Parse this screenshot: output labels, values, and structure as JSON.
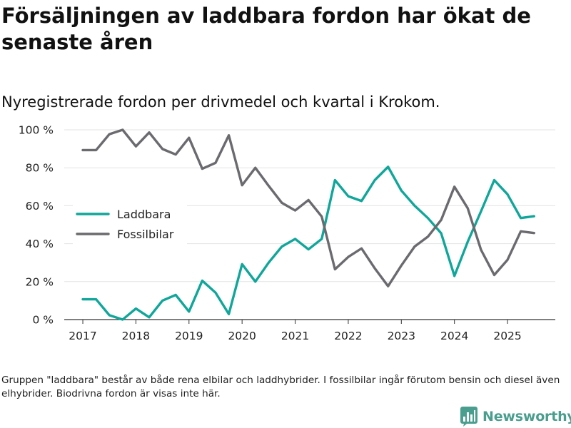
{
  "title": "Försäljningen av laddbara fordon har ökat de senaste åren",
  "subtitle": "Nyregistrerade fordon per drivmedel och kvartal i Krokom.",
  "footnote": "Gruppen \"laddbara\" består av både rena elbilar och laddhybrider. I fossilbilar ingår förutom bensin och diesel även elhybrider. Biodrivna fordon är visas inte här.",
  "brand": {
    "name": "Newsworthy",
    "color": "#4a9e8e",
    "icon": "bar-chart-logo-icon"
  },
  "colors": {
    "laddbara": "#11a69a",
    "fossilbilar": "#6b6b6f",
    "grid": "#e3e3e3",
    "axis": "#333333"
  },
  "chart_data": {
    "type": "line",
    "x_start": 2017,
    "x_step": 0.25,
    "xlim": [
      2016.65,
      2025.9
    ],
    "ylim": [
      0,
      100
    ],
    "yticks": [
      0,
      20,
      40,
      60,
      80,
      100
    ],
    "ytick_labels": [
      "0 %",
      "20 %",
      "40 %",
      "60 %",
      "80 %",
      "100 %"
    ],
    "xticks": [
      2017,
      2018,
      2019,
      2020,
      2021,
      2022,
      2023,
      2024,
      2025
    ],
    "xtick_labels": [
      "2017",
      "2018",
      "2019",
      "2020",
      "2021",
      "2022",
      "2023",
      "2024",
      "2025"
    ],
    "xlabel": "",
    "ylabel": "",
    "legend_position": "middle-left",
    "series": [
      {
        "key": "laddbara",
        "name": "Laddbara",
        "values": [
          10.7,
          10.7,
          2.3,
          0,
          5.8,
          1.2,
          10,
          13,
          4.2,
          20.5,
          14.2,
          2.9,
          29.2,
          20,
          30,
          38.5,
          42.5,
          37,
          42.5,
          73.5,
          65,
          62.5,
          73.5,
          80.5,
          68,
          60,
          53.5,
          45.5,
          23,
          41,
          57,
          73.5,
          66,
          53.5,
          54.5
        ]
      },
      {
        "key": "fossilbilar",
        "name": "Fossilbilar",
        "values": [
          89.3,
          89.3,
          97.7,
          100,
          91.3,
          98.6,
          89.9,
          87,
          95.8,
          79.5,
          82.6,
          97.1,
          70.8,
          80,
          70.5,
          61.5,
          57.5,
          63,
          54.3,
          26.5,
          33,
          37.5,
          27,
          17.6,
          28.5,
          38.5,
          43.7,
          52.5,
          70,
          58.7,
          36.8,
          23.5,
          31.5,
          46.5,
          45.6
        ]
      }
    ]
  }
}
